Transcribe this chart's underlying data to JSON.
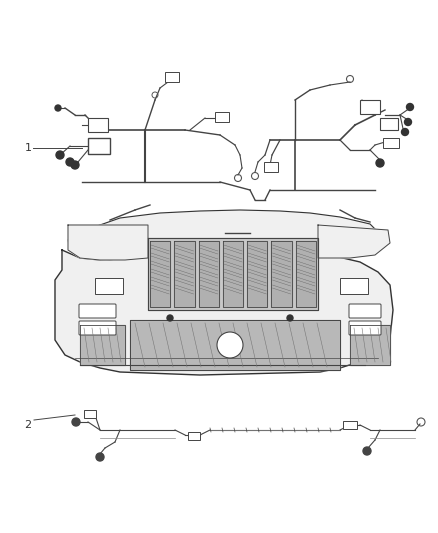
{
  "background_color": "#ffffff",
  "fig_width": 4.38,
  "fig_height": 5.33,
  "dpi": 100,
  "label_color": "#333333",
  "label_fontsize": 8,
  "line_color": "#444444",
  "line_color_light": "#888888",
  "bumper_fill": "#f0f0f0",
  "bumper_edge": "#333333",
  "grille_fill": "#c8c8c8",
  "grille_slat_fill": "#b0b0b0",
  "lower_grille_fill": "#b8b8b8"
}
